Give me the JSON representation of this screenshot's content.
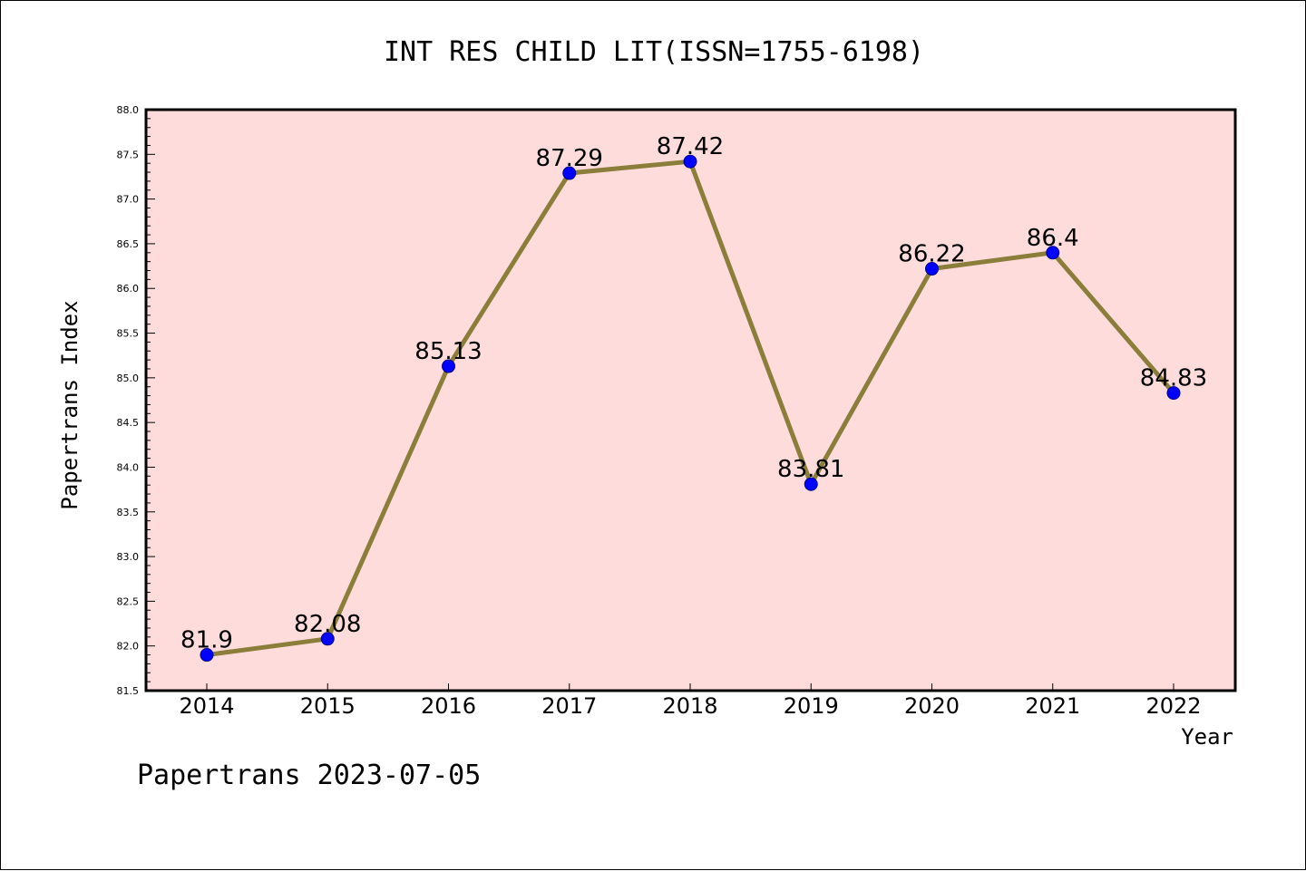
{
  "chart_data": {
    "type": "line",
    "title": "INT RES CHILD LIT(ISSN=1755-6198)",
    "xlabel": "Year",
    "ylabel": "Papertrans Index",
    "categories": [
      "2014",
      "2015",
      "2016",
      "2017",
      "2018",
      "2019",
      "2020",
      "2021",
      "2022"
    ],
    "values": [
      81.9,
      82.08,
      85.13,
      87.29,
      87.42,
      83.81,
      86.22,
      86.4,
      84.83
    ],
    "data_labels": [
      "81.9",
      "82.08",
      "85.13",
      "87.29",
      "87.42",
      "83.81",
      "86.22",
      "86.4",
      "84.83"
    ],
    "ylim": [
      81.5,
      88.0
    ],
    "yticks": [
      "81.5",
      "82.0",
      "82.5",
      "83.0",
      "83.5",
      "84.0",
      "84.5",
      "85.0",
      "85.5",
      "86.0",
      "86.5",
      "87.0",
      "87.5",
      "88.0"
    ],
    "grid": false,
    "colors": {
      "line": "#8b7d3a",
      "marker": "#0000ff",
      "plot_bg": "#ffdcdc"
    }
  },
  "footer": "Papertrans 2023-07-05"
}
